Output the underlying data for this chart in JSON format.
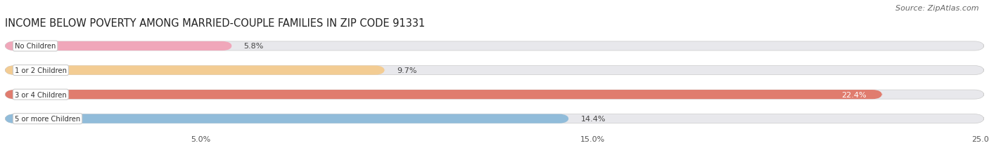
{
  "title": "INCOME BELOW POVERTY AMONG MARRIED-COUPLE FAMILIES IN ZIP CODE 91331",
  "source": "Source: ZipAtlas.com",
  "categories": [
    "No Children",
    "1 or 2 Children",
    "3 or 4 Children",
    "5 or more Children"
  ],
  "values": [
    5.8,
    9.7,
    22.4,
    14.4
  ],
  "bar_colors": [
    "#f2a0b5",
    "#f5c98a",
    "#e07060",
    "#88b8d8"
  ],
  "track_color": "#e8e8ec",
  "xlim": [
    0,
    25.0
  ],
  "xticks": [
    5.0,
    15.0,
    25.0
  ],
  "xtick_labels": [
    "5.0%",
    "15.0%",
    "25.0%"
  ],
  "bg_color": "#ffffff",
  "title_fontsize": 10.5,
  "source_fontsize": 8.0,
  "bar_height": 0.38,
  "bar_spacing": 1.0,
  "figsize": [
    14.06,
    2.32
  ]
}
